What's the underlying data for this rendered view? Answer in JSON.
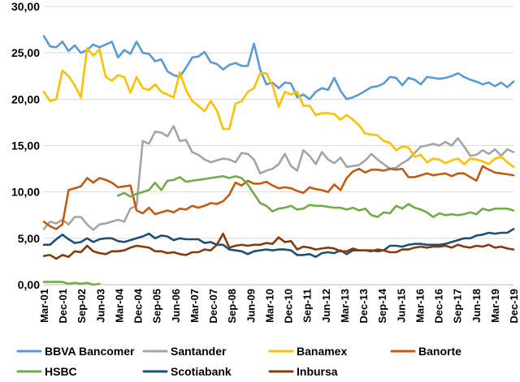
{
  "chart_data": {
    "type": "line",
    "title": "",
    "xlabel": "",
    "ylabel": "",
    "ylim": [
      0,
      30
    ],
    "yticks": [
      "0,00",
      "5,00",
      "10,00",
      "15,00",
      "20,00",
      "25,00",
      "30,00"
    ],
    "x_tick_labels": [
      "Mar-01",
      "Dec-01",
      "Sep-02",
      "Jun-03",
      "Mar-04",
      "Dec-04",
      "Sep-05",
      "Jun-06",
      "Mar-07",
      "Dec-07",
      "Sep-08",
      "Jun-09",
      "Mar-10",
      "Dec-10",
      "Sep-11",
      "Jun-12",
      "Mar-13",
      "Dec-13",
      "Sep-14",
      "Jun-15",
      "Mar-16",
      "Dec-16",
      "Sep-17",
      "Jun-18",
      "Mar-19",
      "Dec-19"
    ],
    "grid": "horizontal",
    "legend_position": "bottom",
    "series": [
      {
        "name": "BBVA Bancomer",
        "color": "#5b9bd5",
        "values": [
          26.8,
          25.7,
          25.6,
          26.2,
          25.2,
          25.8,
          25.0,
          25.3,
          25.9,
          25.6,
          25.9,
          26.2,
          24.5,
          25.3,
          24.9,
          26.2,
          25.0,
          24.9,
          24.1,
          24.3,
          23.0,
          22.6,
          22.4,
          23.4,
          24.5,
          24.6,
          25.1,
          24.0,
          23.8,
          23.2,
          23.7,
          23.9,
          23.6,
          23.6,
          26.0,
          23.2,
          21.6,
          21.8,
          21.2,
          21.8,
          21.7,
          20.2,
          20.5,
          20.0,
          20.8,
          21.2,
          21.0,
          22.3,
          20.9,
          20.0,
          20.2,
          20.5,
          20.9,
          21.3,
          21.4,
          21.7,
          22.4,
          22.3,
          21.5,
          22.3,
          22.1,
          21.6,
          22.4,
          22.3,
          22.2,
          22.3,
          22.5,
          22.8,
          22.4,
          22.1,
          21.9,
          21.6,
          21.8,
          21.4,
          21.8,
          21.3,
          21.9
        ]
      },
      {
        "name": "Santander",
        "color": "#a5a5a5",
        "values": [
          6.0,
          6.8,
          6.6,
          7.0,
          6.5,
          7.3,
          7.3,
          6.5,
          5.9,
          6.5,
          6.6,
          6.8,
          7.0,
          6.8,
          8.2,
          8.5,
          15.5,
          15.2,
          16.5,
          16.4,
          16.0,
          17.1,
          15.5,
          15.6,
          14.3,
          14.0,
          13.5,
          13.2,
          13.4,
          13.6,
          13.5,
          13.2,
          14.2,
          14.1,
          13.5,
          12.0,
          12.3,
          12.5,
          13.0,
          14.1,
          12.8,
          12.3,
          14.5,
          13.9,
          13.0,
          14.3,
          13.5,
          13.1,
          13.7,
          12.7,
          12.8,
          12.9,
          13.4,
          14.1,
          13.5,
          13.0,
          12.5,
          12.6,
          13.1,
          13.5,
          14.2,
          14.9,
          15.0,
          15.2,
          15.0,
          15.4,
          15.0,
          15.8,
          14.9,
          13.9,
          14.0,
          14.5,
          14.1,
          14.6,
          13.9,
          14.6,
          14.3
        ]
      },
      {
        "name": "Banamex",
        "color": "#ffc000",
        "values": [
          20.8,
          19.8,
          20.0,
          23.1,
          22.5,
          21.5,
          20.2,
          25.5,
          24.7,
          25.4,
          22.4,
          22.0,
          22.6,
          22.4,
          20.7,
          22.4,
          21.2,
          21.0,
          21.6,
          20.8,
          20.5,
          20.2,
          22.9,
          21.0,
          19.8,
          19.3,
          18.7,
          19.8,
          18.8,
          16.8,
          16.8,
          19.5,
          19.8,
          20.8,
          21.2,
          22.8,
          22.8,
          21.5,
          19.2,
          20.8,
          20.5,
          20.8,
          19.3,
          19.3,
          18.3,
          18.5,
          18.5,
          18.4,
          17.8,
          18.3,
          17.8,
          17.2,
          16.3,
          16.2,
          16.1,
          15.5,
          15.3,
          14.5,
          14.9,
          14.8,
          13.8,
          14.0,
          13.2,
          13.6,
          13.5,
          13.1,
          13.4,
          13.6,
          13.0,
          13.6,
          13.5,
          13.3,
          13.0,
          13.6,
          13.8,
          13.2,
          12.7
        ]
      },
      {
        "name": "Banorte",
        "color": "#c55a11",
        "values": [
          6.8,
          6.3,
          6.0,
          6.5,
          10.2,
          10.4,
          10.6,
          11.5,
          11.0,
          11.5,
          11.3,
          11.0,
          10.5,
          10.6,
          10.7,
          8.0,
          7.7,
          8.3,
          7.6,
          7.8,
          8.0,
          7.8,
          8.2,
          8.1,
          8.5,
          8.3,
          8.5,
          8.8,
          8.7,
          9.0,
          9.7,
          11.0,
          10.7,
          11.2,
          10.9,
          10.9,
          11.1,
          10.7,
          10.4,
          10.5,
          10.4,
          10.1,
          9.9,
          10.5,
          10.3,
          10.2,
          10.0,
          10.8,
          10.2,
          11.5,
          12.2,
          12.5,
          12.1,
          12.4,
          12.4,
          12.3,
          12.5,
          12.4,
          12.5,
          11.6,
          11.6,
          11.8,
          12.0,
          11.8,
          11.9,
          12.0,
          11.7,
          12.0,
          12.0,
          11.6,
          11.2,
          12.8,
          12.4,
          12.1,
          12.0,
          11.9,
          11.8
        ]
      },
      {
        "name": "HSBC",
        "color": "#70ad47",
        "values": [
          0.3,
          0.3,
          0.3,
          0.3,
          0.1,
          0.2,
          0.1,
          0.2,
          0.0,
          0.1,
          null,
          null,
          9.6,
          9.9,
          9.5,
          9.8,
          10.0,
          10.2,
          11.0,
          10.2,
          11.2,
          11.3,
          11.6,
          11.1,
          11.2,
          11.3,
          11.4,
          11.5,
          11.6,
          11.7,
          11.5,
          11.7,
          11.5,
          10.8,
          9.8,
          8.8,
          8.5,
          7.9,
          8.2,
          8.3,
          8.5,
          8.1,
          8.2,
          8.6,
          8.5,
          8.5,
          8.4,
          8.3,
          8.3,
          8.1,
          8.3,
          8.0,
          8.2,
          7.5,
          7.3,
          7.8,
          7.7,
          8.5,
          8.2,
          8.7,
          8.3,
          8.1,
          7.8,
          7.3,
          7.7,
          7.5,
          7.6,
          7.5,
          7.6,
          7.8,
          7.6,
          8.2,
          8.0,
          8.2,
          8.2,
          8.2,
          8.0
        ]
      },
      {
        "name": "Scotiabank",
        "color": "#1f4e79",
        "values": [
          4.3,
          4.3,
          4.9,
          5.4,
          4.9,
          4.5,
          4.6,
          5.0,
          4.6,
          4.9,
          5.0,
          5.0,
          4.7,
          4.6,
          4.8,
          5.0,
          5.2,
          5.5,
          5.0,
          5.3,
          5.2,
          4.8,
          5.0,
          4.9,
          4.9,
          4.9,
          4.5,
          4.6,
          4.3,
          4.3,
          3.8,
          3.7,
          3.6,
          3.3,
          3.6,
          3.7,
          3.8,
          3.7,
          3.8,
          3.8,
          3.7,
          3.2,
          3.2,
          3.3,
          3.0,
          3.4,
          3.5,
          3.4,
          3.7,
          3.3,
          3.7,
          3.7,
          3.7,
          3.7,
          3.6,
          3.7,
          4.2,
          4.2,
          4.1,
          4.3,
          4.4,
          4.4,
          4.3,
          4.3,
          4.3,
          4.4,
          4.6,
          4.8,
          5.0,
          5.0,
          5.3,
          5.4,
          5.6,
          5.5,
          5.6,
          5.6,
          6.0
        ]
      },
      {
        "name": "Inbursa",
        "color": "#843c0c",
        "values": [
          3.1,
          3.2,
          2.8,
          3.2,
          3.0,
          3.6,
          3.5,
          4.2,
          3.6,
          3.4,
          3.3,
          3.6,
          3.6,
          3.7,
          4.0,
          4.2,
          4.1,
          4.0,
          3.6,
          3.6,
          3.4,
          3.5,
          3.3,
          3.2,
          3.5,
          3.5,
          3.8,
          3.7,
          4.3,
          5.5,
          4.0,
          4.2,
          4.3,
          4.2,
          4.3,
          4.3,
          4.5,
          4.4,
          5.1,
          4.6,
          4.7,
          3.8,
          4.1,
          4.0,
          3.8,
          3.9,
          4.0,
          3.9,
          3.6,
          3.6,
          3.9,
          3.7,
          3.7,
          3.6,
          3.8,
          3.7,
          3.5,
          3.5,
          3.8,
          3.8,
          4.0,
          4.1,
          4.0,
          4.1,
          4.1,
          4.2,
          4.0,
          4.3,
          4.1,
          4.0,
          4.2,
          4.1,
          4.3,
          4.0,
          4.1,
          3.9,
          3.8
        ]
      }
    ]
  }
}
